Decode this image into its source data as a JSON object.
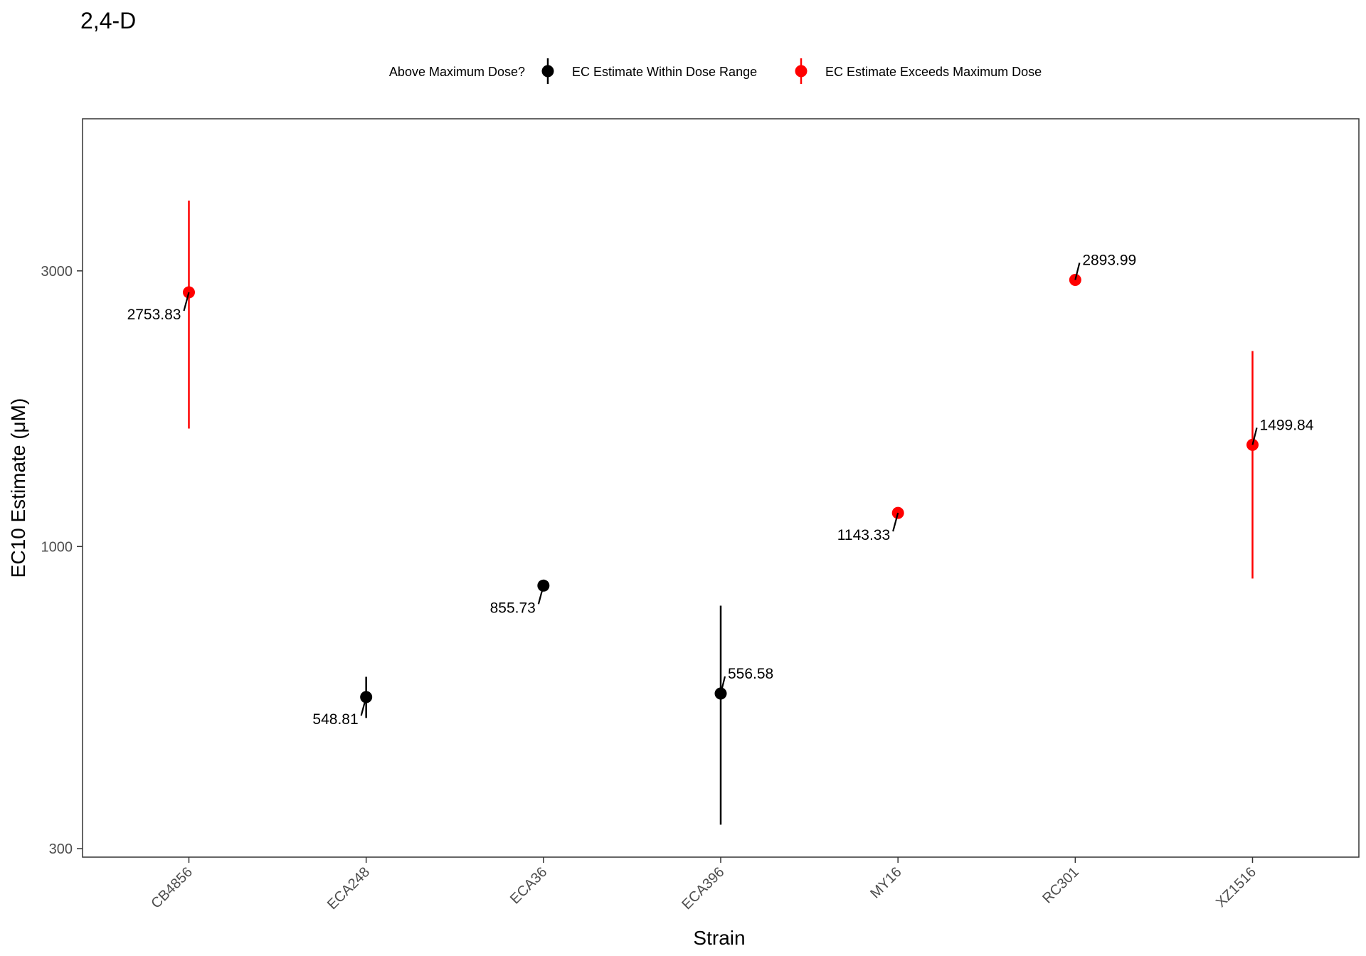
{
  "chart_data": {
    "type": "scatter",
    "title": "2,4-D",
    "xlabel": "Strain",
    "ylabel": "EC10 Estimate (μM)",
    "y_scale": "log",
    "ylim": [
      290,
      5500
    ],
    "y_ticks": [
      300,
      1000,
      3000
    ],
    "y_tick_labels": [
      "300",
      "1000",
      "3000"
    ],
    "grid": false,
    "legend": {
      "position": "top",
      "title": "Above Maximum Dose?",
      "entries": [
        {
          "label": "EC Estimate Within Dose Range",
          "color": "#000000"
        },
        {
          "label": "EC Estimate Exceeds Maximum Dose",
          "color": "#ff0000"
        }
      ]
    },
    "categories": [
      "CB4856",
      "ECA248",
      "ECA36",
      "ECA396",
      "MY16",
      "RC301",
      "XZ1516"
    ],
    "points": [
      {
        "strain": "CB4856",
        "value": 2753.83,
        "label": "2753.83",
        "lower": 1600,
        "upper": 3970,
        "exceeds": true,
        "label_side": "left"
      },
      {
        "strain": "ECA248",
        "value": 548.81,
        "label": "548.81",
        "lower": 505,
        "upper": 595,
        "exceeds": false,
        "label_side": "left"
      },
      {
        "strain": "ECA36",
        "value": 855.73,
        "label": "855.73",
        "lower": null,
        "upper": null,
        "exceeds": false,
        "label_side": "left"
      },
      {
        "strain": "ECA396",
        "value": 556.58,
        "label": "556.58",
        "lower": 330,
        "upper": 790,
        "exceeds": false,
        "label_side": "right"
      },
      {
        "strain": "MY16",
        "value": 1143.33,
        "label": "1143.33",
        "lower": null,
        "upper": null,
        "exceeds": true,
        "label_side": "left"
      },
      {
        "strain": "RC301",
        "value": 2893.99,
        "label": "2893.99",
        "lower": null,
        "upper": null,
        "exceeds": true,
        "label_side": "right"
      },
      {
        "strain": "XZ1516",
        "value": 1499.84,
        "label": "1499.84",
        "lower": 880,
        "upper": 2180,
        "exceeds": true,
        "label_side": "right"
      }
    ]
  }
}
